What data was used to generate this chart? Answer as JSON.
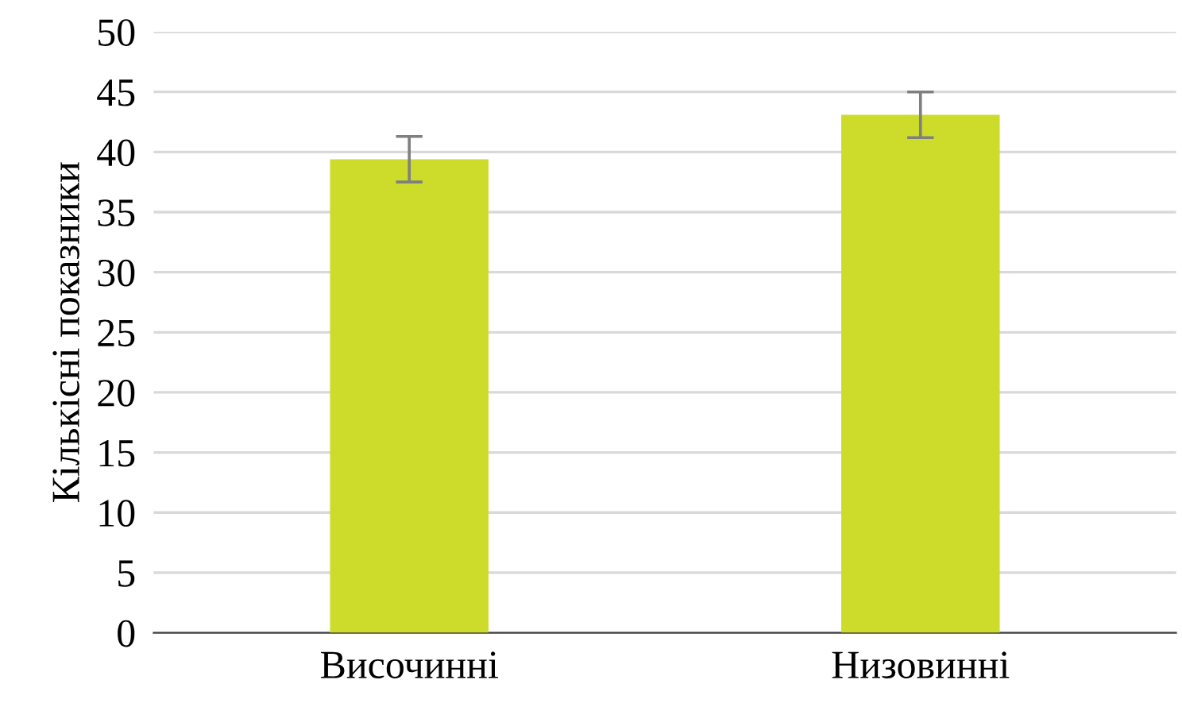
{
  "chart_data": {
    "type": "bar",
    "ylabel": "Кількісні показники",
    "categories": [
      "Височинні",
      "Низовинні"
    ],
    "values": [
      39.4,
      43.1
    ],
    "errors": [
      1.9,
      1.9
    ],
    "color": "#cddc2a",
    "ylim": [
      0,
      50
    ],
    "yticks": [
      0,
      5,
      10,
      15,
      20,
      25,
      30,
      35,
      40,
      45,
      50
    ],
    "grid": "y"
  }
}
